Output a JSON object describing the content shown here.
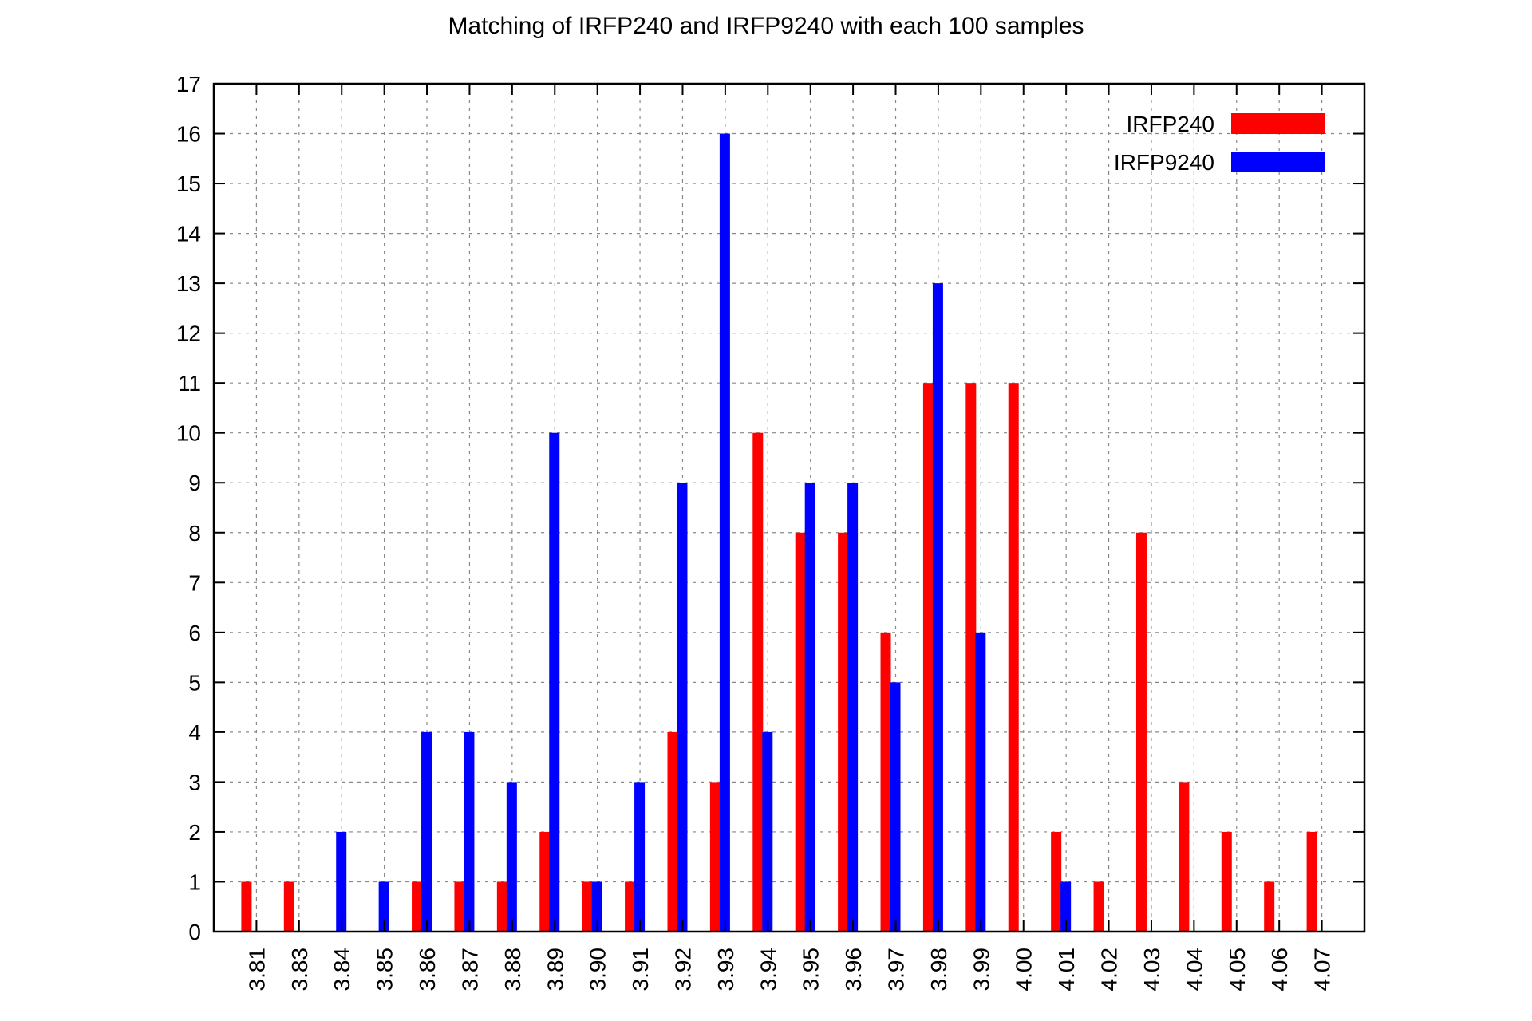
{
  "chart_data": {
    "type": "bar",
    "title": "Matching of IRFP240 and IRFP9240 with each 100 samples",
    "xlabel": "",
    "ylabel": "",
    "ylim": [
      0,
      17
    ],
    "yticks": [
      "0",
      "1",
      "2",
      "3",
      "4",
      "5",
      "6",
      "7",
      "8",
      "9",
      "10",
      "11",
      "12",
      "13",
      "14",
      "15",
      "16",
      "17"
    ],
    "grid": true,
    "legend_position": "top-right",
    "categories": [
      "3.81",
      "3.83",
      "3.84",
      "3.85",
      "3.86",
      "3.87",
      "3.88",
      "3.89",
      "3.90",
      "3.91",
      "3.92",
      "3.93",
      "3.94",
      "3.95",
      "3.96",
      "3.97",
      "3.98",
      "3.99",
      "4.00",
      "4.01",
      "4.02",
      "4.03",
      "4.04",
      "4.05",
      "4.06",
      "4.07"
    ],
    "series": [
      {
        "name": "IRFP240",
        "color": "#ff0000",
        "values": [
          1,
          1,
          0,
          0,
          1,
          1,
          1,
          2,
          1,
          1,
          4,
          3,
          10,
          8,
          8,
          6,
          11,
          11,
          11,
          2,
          1,
          8,
          3,
          2,
          1,
          2
        ]
      },
      {
        "name": "IRFP9240",
        "color": "#0000ff",
        "values": [
          0,
          0,
          2,
          1,
          4,
          4,
          3,
          10,
          1,
          3,
          9,
          16,
          4,
          9,
          9,
          5,
          13,
          6,
          0,
          1,
          0,
          0,
          0,
          0,
          0,
          0
        ]
      }
    ]
  }
}
